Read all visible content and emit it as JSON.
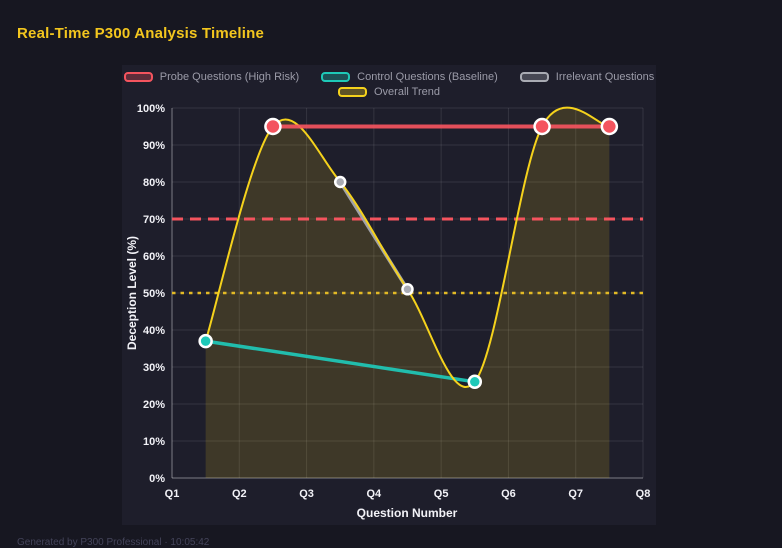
{
  "title": "Real-Time P300 Analysis Timeline",
  "footer": {
    "text": "Generated by P300 Professional · 10:05:42"
  },
  "colors": {
    "page_bg": "#171721",
    "panel_bg": "#1e1e2b",
    "grid": "rgba(255,255,255,0.10)",
    "axis": "rgba(255,255,255,0.42)",
    "tick_text": "#f2f2f7",
    "legend_text": "#9b9ba8",
    "title_text": "#f3c61e",
    "point_ring": "#ffffff",
    "area_fill": "rgba(245,208,30,0.15)"
  },
  "legend": {
    "rows": [
      [
        0,
        1,
        2
      ],
      [
        3
      ]
    ],
    "items": [
      {
        "label": "Probe Questions (High Risk)",
        "color": "#f4545e"
      },
      {
        "label": "Control Questions (Baseline)",
        "color": "#1ec9b8"
      },
      {
        "label": "Irrelevant Questions",
        "color": "#a9abb3"
      },
      {
        "label": "Overall Trend",
        "color": "#f5d21c"
      }
    ]
  },
  "chart_data": {
    "type": "line",
    "title": "Real-Time P300 Analysis Timeline",
    "xlabel": "Question Number",
    "ylabel": "Deception Level (%)",
    "x_ticks": [
      "Q1",
      "Q2",
      "Q3",
      "Q4",
      "Q5",
      "Q6",
      "Q7",
      "Q8"
    ],
    "y_ticks": [
      "0%",
      "10%",
      "20%",
      "30%",
      "40%",
      "50%",
      "60%",
      "70%",
      "80%",
      "90%",
      "100%"
    ],
    "xlim": [
      1,
      8
    ],
    "ylim": [
      0,
      100
    ],
    "grid": true,
    "legend_position": "top",
    "series": [
      {
        "name": "Control Questions (Baseline)",
        "color": "#1ec9b8",
        "line_width": 3.5,
        "point_radius": 6,
        "points": [
          {
            "x": 1.5,
            "y": 37
          },
          {
            "x": 5.5,
            "y": 26
          }
        ]
      },
      {
        "name": "Irrelevant Questions",
        "color": "#a9abb3",
        "line_width": 3.5,
        "point_radius": 5,
        "points": [
          {
            "x": 3.5,
            "y": 80
          },
          {
            "x": 4.5,
            "y": 51
          }
        ]
      },
      {
        "name": "Overall Trend",
        "color": "#f5d21c",
        "line_width": 2,
        "point_radius": 0,
        "smooth": true,
        "area": true,
        "points": [
          {
            "x": 1.5,
            "y": 37
          },
          {
            "x": 2.5,
            "y": 95
          },
          {
            "x": 3.5,
            "y": 80
          },
          {
            "x": 4.5,
            "y": 51
          },
          {
            "x": 5.5,
            "y": 26
          },
          {
            "x": 6.5,
            "y": 95
          },
          {
            "x": 7.5,
            "y": 95
          }
        ]
      },
      {
        "name": "Probe Questions (High Risk)",
        "color": "#f4545e",
        "line_width": 4,
        "point_radius": 7.5,
        "points": [
          {
            "x": 2.5,
            "y": 95
          },
          {
            "x": 6.5,
            "y": 95
          },
          {
            "x": 7.5,
            "y": 95
          }
        ]
      }
    ],
    "thresholds": [
      {
        "y": 70,
        "style": "dashed",
        "color": "#f4545e"
      },
      {
        "y": 50,
        "style": "dotted",
        "color": "#e3ba25"
      }
    ]
  }
}
